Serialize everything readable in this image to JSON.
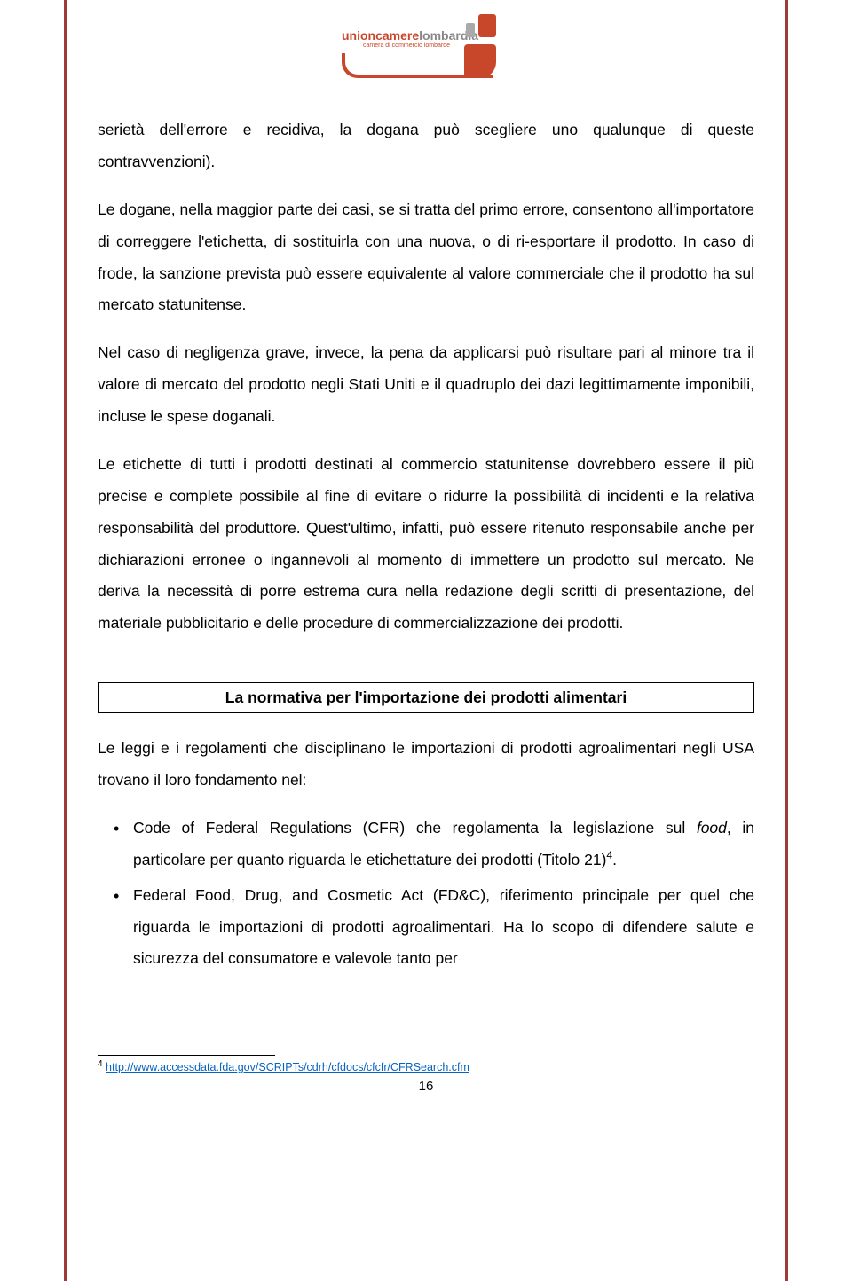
{
  "logo": {
    "brand_first": "unioncamere",
    "brand_second": "lombardia",
    "subtitle": "camera di commercio lombarde"
  },
  "paragraphs": {
    "p1": "serietà dell'errore e recidiva, la dogana può scegliere uno qualunque di queste contravvenzioni).",
    "p2": "Le dogane, nella maggior parte dei casi, se si tratta del primo errore, consentono all'importatore di correggere l'etichetta, di sostituirla con una nuova, o di ri-esportare il prodotto. In caso di frode, la sanzione prevista può essere equivalente al valore commerciale che il prodotto ha sul mercato statunitense.",
    "p3": "Nel caso di negligenza grave, invece, la pena da applicarsi può risultare pari al minore tra il valore di mercato del prodotto negli Stati Uniti e il quadruplo dei dazi legittimamente imponibili, incluse le spese doganali.",
    "p4": "Le etichette di tutti i prodotti destinati al commercio statunitense dovrebbero essere il più precise e complete possibile al fine di evitare o ridurre la possibilità di incidenti e la relativa responsabilità del produttore. Quest'ultimo, infatti, può essere ritenuto responsabile anche per dichiarazioni erronee o ingannevoli al momento di immettere un prodotto sul mercato. Ne deriva la necessità di porre estrema cura nella redazione degli scritti di presentazione, del materiale pubblicitario e delle procedure di commercializzazione dei prodotti."
  },
  "section_header": "La normativa per l'importazione dei prodotti alimentari",
  "intro_after_header": "Le leggi e i regolamenti che disciplinano le importazioni di prodotti agroalimentari negli USA trovano il loro fondamento nel:",
  "bullets": {
    "b1_pre": "Code of Federal Regulations (CFR) che regolamenta la legislazione sul ",
    "b1_italic": "food",
    "b1_post": ", in particolare per quanto riguarda le etichettature dei prodotti (Titolo 21)",
    "b1_sup": "4",
    "b1_end": ".",
    "b2": "Federal Food, Drug, and Cosmetic Act (FD&C), riferimento principale per quel che riguarda le importazioni di prodotti agroalimentari. Ha lo scopo di difendere salute e sicurezza del consumatore e valevole tanto per"
  },
  "footnote": {
    "num": "4",
    "url": "http://www.accessdata.fda.gov/SCRIPTs/cdrh/cfdocs/cfcfr/CFRSearch.cfm"
  },
  "page_number": "16",
  "colors": {
    "accent": "#9e3a38",
    "logo": "#c8472a",
    "link": "#0563c1",
    "text": "#000000",
    "background": "#ffffff"
  },
  "typography": {
    "body_fontsize_pt": 13,
    "body_line_height": 2.05,
    "header_fontsize_pt": 13,
    "footnote_fontsize_pt": 9
  }
}
